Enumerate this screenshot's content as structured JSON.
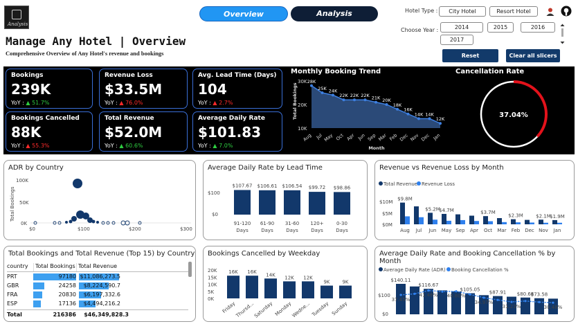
{
  "logo": {
    "text": "Analysis"
  },
  "nav": {
    "overview": "Overview",
    "analysis": "Analysis"
  },
  "header": {
    "title": "Manage Any Hotel | Overview",
    "subtitle": "Comprehensive Overview of Any Hotel's revenue and bookings"
  },
  "filters": {
    "hotel_type_label": "Hotel Type :",
    "hotel_types": [
      "City Hotel",
      "Resort Hotel"
    ],
    "year_label": "Choose Year :",
    "years": [
      "2014",
      "2015",
      "2016",
      "2017"
    ],
    "reset": "Reset",
    "clear": "Clear all slicers"
  },
  "kpis": [
    {
      "title": "Bookings",
      "value": "239K",
      "yoy_label": "YoY :",
      "arrow": "▲",
      "yoy": "51.7%",
      "color": "#2ecc40"
    },
    {
      "title": "Revenue Loss",
      "value": "$33.5M",
      "yoy_label": "YoY :",
      "arrow": "▲",
      "yoy": "76.0%",
      "color": "#ff2a2a"
    },
    {
      "title": "Avg. Lead Time (Days)",
      "value": "104",
      "yoy_label": "YoY :",
      "arrow": "▲",
      "yoy": "2.7%",
      "color": "#ff2a2a"
    },
    {
      "title": "Bookings Cancelled",
      "value": "88K",
      "yoy_label": "YoY :",
      "arrow": "▲",
      "yoy": "55.3%",
      "color": "#ff2a2a"
    },
    {
      "title": "Total Revenue",
      "value": "$52.0M",
      "yoy_label": "YoY :",
      "arrow": "▲",
      "yoy": "60.6%",
      "color": "#2ecc40"
    },
    {
      "title": "Average Daily Rate",
      "value": "$101.83",
      "yoy_label": "YoY :",
      "arrow": "▲",
      "yoy": "7.0%",
      "color": "#2ecc40"
    }
  ],
  "monthly_trend": {
    "title": "Monthly Booking Trend",
    "ylabel": "Total Bookings",
    "xlabel": "Month",
    "yticks": [
      "30K",
      "20K",
      "10K"
    ],
    "months": [
      "Aug",
      "Jul",
      "May",
      "Oct",
      "Apr",
      "Jun",
      "Sep",
      "Mar",
      "Feb",
      "Dec",
      "Nov",
      "Dec",
      "Jan"
    ],
    "values": [
      28,
      25,
      24,
      22,
      22,
      22,
      21,
      20,
      18,
      16,
      14,
      14,
      12
    ],
    "labels": [
      "28K",
      "25K",
      "24K",
      "22K",
      "22K",
      "22K",
      "21K",
      "20K",
      "18K",
      "16K",
      "14K",
      "14K",
      "12K"
    ]
  },
  "cancellation": {
    "title": "Cancellation Rate",
    "value": "37.04%",
    "fraction": 0.3704
  },
  "adr_country": {
    "title": "ADR by Country",
    "ylabel": "Total Bookings",
    "yticks": [
      "100K",
      "50K",
      "0K"
    ],
    "xticks": [
      "$0",
      "$100",
      "$200",
      "$300"
    ]
  },
  "adr_lead": {
    "title": "Average Daily Rate by Lead Time",
    "yticks": [
      "$100",
      "$0"
    ],
    "categories": [
      "91-120 Days",
      "61-90 Days",
      "31-60 Days",
      "120+ Days",
      "0-30 Days"
    ],
    "cat_line1": [
      "91-120",
      "61-90",
      "31-60",
      "120+",
      "0-30"
    ],
    "cat_line2": [
      "Days",
      "Days",
      "Days",
      "Days",
      "Days"
    ],
    "values": [
      107.67,
      106.61,
      106.54,
      99.72,
      98.86
    ],
    "labels": [
      "$107.67",
      "$106.61",
      "$106.54",
      "$99.72",
      "$98.86"
    ]
  },
  "rev_loss": {
    "title": "Revenue vs Revenue Loss by Month",
    "legend": [
      "Total Revenue",
      "Revenue Loss"
    ],
    "yticks": [
      "$10M",
      "$5M",
      "$0M"
    ],
    "months": [
      "Aug",
      "Jul",
      "Jun",
      "May",
      "Sep",
      "Apr",
      "Oct",
      "Mar",
      "Feb",
      "Dec",
      "Nov",
      "Jan"
    ],
    "revenue": [
      9.8,
      8.1,
      5.2,
      4.7,
      4.5,
      3.9,
      3.7,
      2.8,
      2.3,
      2.0,
      2.1,
      1.9
    ],
    "loss": [
      3.6,
      3.2,
      2.1,
      1.6,
      1.9,
      1.5,
      1.4,
      1.0,
      0.9,
      0.8,
      0.7,
      0.7
    ],
    "labels": [
      "$9.8M",
      "",
      "$5.2M",
      "$4.7M",
      "",
      "",
      "$3.7M",
      "",
      "$2.3M",
      "",
      "$2.1M",
      "$1.9M"
    ]
  },
  "top15": {
    "title": "Total Bookings and Total Revenue (Top 15) by Country",
    "columns": [
      "country",
      "Total Bookings",
      "Total Revenue"
    ],
    "rows": [
      {
        "country": "PRT",
        "bookings": "97180",
        "revenue": "$11,086,273.5",
        "b": 1.0,
        "r": 1.0
      },
      {
        "country": "GBR",
        "bookings": "24258",
        "revenue": "$8,224,590.7",
        "b": 0.25,
        "r": 0.74
      },
      {
        "country": "FRA",
        "bookings": "20830",
        "revenue": "$6,197,332.6",
        "b": 0.21,
        "r": 0.56
      },
      {
        "country": "ESP",
        "bookings": "17136",
        "revenue": "$4,494,216.2",
        "b": 0.18,
        "r": 0.41
      }
    ],
    "total": {
      "country": "Total",
      "bookings": "216386",
      "revenue": "$46,349,828.3"
    }
  },
  "weekday": {
    "title": "Bookings Cancelled by Weekday",
    "yticks": [
      "20K",
      "15K",
      "10K",
      "5K",
      "0K"
    ],
    "days": [
      "Friday",
      "Thursd...",
      "Saturday",
      "Monday",
      "Wedne...",
      "Tuesday",
      "Sunday"
    ],
    "values": [
      16,
      16,
      14,
      12,
      12,
      9,
      9
    ],
    "labels": [
      "16K",
      "16K",
      "14K",
      "12K",
      "12K",
      "9K",
      "9K"
    ]
  },
  "adr_cancel": {
    "title": "Average Daily Rate and Booking Cancellation % by Month",
    "legend": [
      "Average Daily Rate (ADR)",
      "Booking Cancellation %"
    ],
    "yticks": [
      "$100",
      "$0"
    ],
    "adr_labels": [
      "$140.11",
      "$116.67",
      "$105.05",
      "$87.91",
      "$80.68",
      "$73.58"
    ],
    "pct_labels": [
      "37.45%",
      "41.46%",
      "40.80%",
      "34.97%",
      "31.23%",
      "30.48%"
    ],
    "adr": [
      140,
      128,
      117,
      110,
      105,
      97,
      88,
      84,
      81,
      77,
      74,
      72
    ],
    "pct": [
      37.5,
      38.5,
      41.5,
      40.5,
      40.8,
      38.0,
      35.0,
      33.0,
      31.2,
      32.0,
      31.0,
      30.5
    ]
  },
  "colors": {
    "navy": "#12386b",
    "blue": "#2f80ed",
    "red": "#e3121b",
    "kpi_border": "#3a6fd8"
  }
}
